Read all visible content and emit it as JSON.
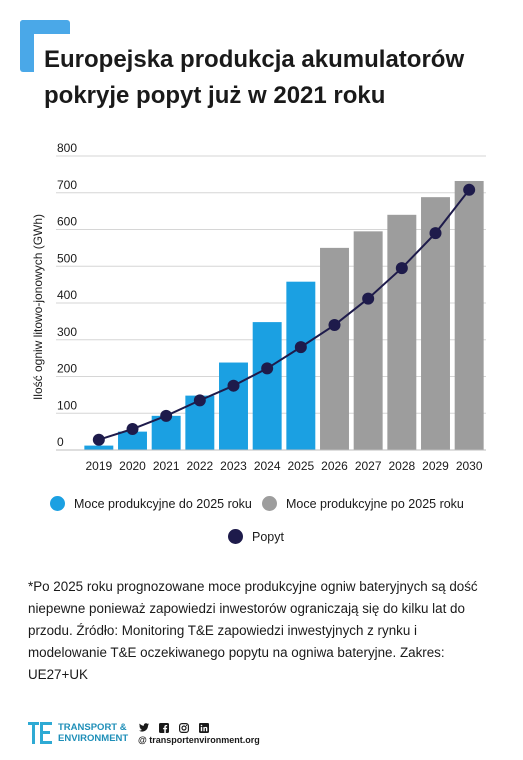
{
  "title": {
    "line1": "Europejska produkcja akumulatorów",
    "line2": "pokryje popyt już w 2021 roku"
  },
  "chart_data": {
    "type": "bar",
    "ylabel": "Ilość ogniw litowo-jonowych (GWh)",
    "ylim": [
      0,
      800
    ],
    "yticks": [
      0,
      100,
      200,
      300,
      400,
      500,
      600,
      700,
      800
    ],
    "categories": [
      "2019",
      "2020",
      "2021",
      "2022",
      "2023",
      "2024",
      "2025",
      "2026",
      "2027",
      "2028",
      "2029",
      "2030"
    ],
    "series": [
      {
        "name": "Moce produkcyjne do 2025 roku",
        "kind": "bar",
        "color": "#1ba0e2",
        "values": [
          12,
          50,
          93,
          148,
          238,
          348,
          458,
          null,
          null,
          null,
          null,
          null
        ]
      },
      {
        "name": "Moce produkcyjne po 2025 roku",
        "kind": "bar",
        "color": "#9d9d9d",
        "values": [
          null,
          null,
          null,
          null,
          null,
          null,
          null,
          550,
          595,
          640,
          688,
          732
        ]
      },
      {
        "name": "Popyt",
        "kind": "line",
        "color": "#1e1b4b",
        "values": [
          28,
          57,
          93,
          135,
          175,
          222,
          280,
          340,
          412,
          495,
          590,
          708
        ]
      }
    ],
    "grid": true,
    "legend_position": "bottom"
  },
  "legend": {
    "items": [
      {
        "label": "Moce produkcyjne do 2025 roku",
        "color": "#1ba0e2"
      },
      {
        "label": "Moce produkcyjne po 2025 roku",
        "color": "#9d9d9d"
      },
      {
        "label": "Popyt",
        "color": "#1e1b4b"
      }
    ]
  },
  "note": "*Po 2025 roku prognozowane moce produkcyjne ogniw bateryjnych są dość niepewne ponieważ zapowiedzi inwestorów ograniczają się do kilku lat do przodu. Źródło: Monitoring T&E zapowiedzi inwestyjnych z rynku i modelowanie T&E oczekiwanego popytu na ogniwa bateryjne. Zakres: UE27+UK",
  "footer": {
    "brand_line1": "TRANSPORT &",
    "brand_line2": "ENVIRONMENT",
    "website": "@ transportenvironment.org",
    "social_icons": [
      "twitter-icon",
      "facebook-icon",
      "instagram-icon",
      "linkedin-icon"
    ]
  }
}
